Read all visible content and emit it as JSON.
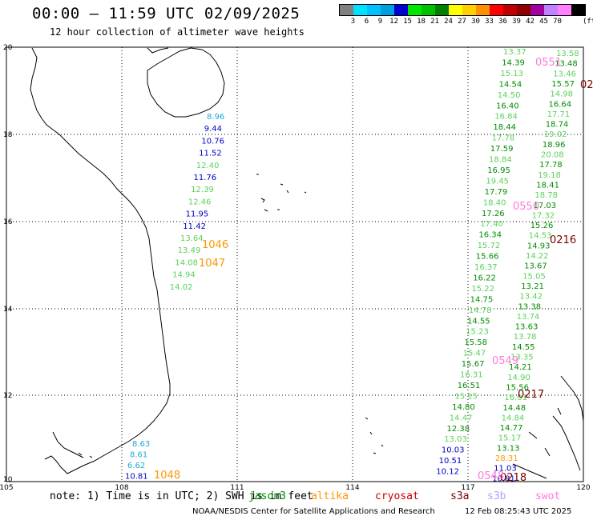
{
  "header": {
    "title": "00:00 – 11:59 UTC 02/09/2025",
    "subtitle": "12 hour collection of altimeter wave heights"
  },
  "scale": {
    "unit": "(ft)",
    "entries": [
      {
        "label": "",
        "color": "#808080"
      },
      {
        "label": "3",
        "color": "#00e0ff"
      },
      {
        "label": "6",
        "color": "#00c0ff"
      },
      {
        "label": "9",
        "color": "#00a0e0"
      },
      {
        "label": "12",
        "color": "#0000d0"
      },
      {
        "label": "15",
        "color": "#00e800"
      },
      {
        "label": "18",
        "color": "#00c000"
      },
      {
        "label": "21",
        "color": "#008000"
      },
      {
        "label": "24",
        "color": "#ffff00"
      },
      {
        "label": "27",
        "color": "#ffd000"
      },
      {
        "label": "30",
        "color": "#ff9000"
      },
      {
        "label": "33",
        "color": "#ff0000"
      },
      {
        "label": "36",
        "color": "#c00000"
      },
      {
        "label": "39",
        "color": "#900000"
      },
      {
        "label": "42",
        "color": "#a000a0"
      },
      {
        "label": "45",
        "color": "#c080ff"
      },
      {
        "label": "70",
        "color": "#ff80ff"
      },
      {
        "label": "",
        "color": "#000000"
      }
    ]
  },
  "axes": {
    "lat_labels": [
      "20",
      "18",
      "16",
      "14",
      "12",
      "10"
    ],
    "lon_labels": [
      "105",
      "108",
      "111",
      "114",
      "117",
      "120"
    ]
  },
  "colors": {
    "cyan": "#1eaad2",
    "blue": "#0000c8",
    "lightgreen": "#5ad25a",
    "green": "#008c00",
    "orange": "#ff9600",
    "pink": "#ff78dc",
    "maroon": "#780000"
  },
  "tracks": {
    "left": [
      {
        "t": "8.96",
        "c": "cyan"
      },
      {
        "t": "9.44",
        "c": "blue"
      },
      {
        "t": "10.76",
        "c": "blue"
      },
      {
        "t": "11.52",
        "c": "blue"
      },
      {
        "t": "12.40",
        "c": "lightgreen"
      },
      {
        "t": "11.76",
        "c": "blue"
      },
      {
        "t": "12.39",
        "c": "lightgreen"
      },
      {
        "t": "12.46",
        "c": "lightgreen"
      },
      {
        "t": "11.95",
        "c": "blue"
      },
      {
        "t": "11.42",
        "c": "blue"
      },
      {
        "t": "13.64",
        "c": "lightgreen"
      },
      {
        "t": "13.49",
        "c": "lightgreen"
      },
      {
        "t": "14.08",
        "c": "lightgreen"
      },
      {
        "t": "14.94",
        "c": "lightgreen"
      },
      {
        "t": "14.02",
        "c": "lightgreen"
      }
    ],
    "left_passes": [
      {
        "t": "1046",
        "c": "orange"
      },
      {
        "t": "1047",
        "c": "orange"
      }
    ],
    "bottom": [
      {
        "t": "8.63",
        "c": "cyan"
      },
      {
        "t": "8.61",
        "c": "cyan"
      },
      {
        "t": "6.62",
        "c": "cyan"
      },
      {
        "t": "10.81",
        "c": "blue"
      }
    ],
    "bottom_pass": {
      "t": "1048",
      "c": "orange"
    },
    "right_a": [
      "13.37",
      "14.39",
      "15.13",
      "14.54",
      "14.50",
      "16.40",
      "16.84",
      "18.44",
      "17.78",
      "17.59",
      "18.84",
      "16.95",
      "19.45",
      "17.79",
      "18.40",
      "17.26",
      "17.40",
      "16.34",
      "15.72",
      "15.66",
      "16.37",
      "16.22",
      "15.22",
      "14.75",
      "14.78",
      "14.55",
      "15.23",
      "15.58",
      "15.47",
      "15.67",
      "16.31",
      "16.51",
      "15.15",
      "14.80",
      "14.47",
      "12.38",
      "13.03",
      "10.03",
      "10.51",
      "10.12"
    ],
    "right_b": [
      "13.58",
      "13.48",
      "13.46",
      "15.57",
      "14.98",
      "16.64",
      "17.71",
      "18.74",
      "19.02",
      "18.96",
      "20.08",
      "17.78",
      "19.18",
      "18.41",
      "18.78",
      "17.03",
      "17.32",
      "15.26",
      "14.53",
      "14.93",
      "14.22",
      "13.67",
      "15.05",
      "13.21",
      "13.42",
      "13.38",
      "13.74",
      "13.63",
      "13.78",
      "14.55",
      "13.35",
      "14.21",
      "14.90",
      "15.56",
      "16.01",
      "14.48",
      "14.84",
      "14.77",
      "15.17",
      "13.13",
      "28.31",
      "11.03",
      "10.81"
    ],
    "right_passes": [
      {
        "t": "0551",
        "c": "pink"
      },
      {
        "t": "02",
        "c": "maroon"
      },
      {
        "t": "0550",
        "c": "pink"
      },
      {
        "t": "0216",
        "c": "maroon"
      },
      {
        "t": "0549",
        "c": "pink"
      },
      {
        "t": "0217",
        "c": "maroon"
      },
      {
        "t": "0218",
        "c": "maroon"
      },
      {
        "t": "0548",
        "c": "pink"
      }
    ]
  },
  "footer": {
    "note": "note: 1) Time is in UTC; 2) SWH is in feet",
    "satellites": [
      {
        "name": "jason3",
        "color": "#008c00"
      },
      {
        "name": "altika",
        "color": "#ff9600"
      },
      {
        "name": "cryosat",
        "color": "#c80000"
      },
      {
        "name": "s3a",
        "color": "#780000"
      },
      {
        "name": "s3b",
        "color": "#b4a0ff"
      },
      {
        "name": "swot",
        "color": "#ff78dc"
      }
    ],
    "credit": "NOAA/NESDIS Center for Satellite Applications and Research",
    "timestamp": "12 Feb 08:25:43 UTC 2025"
  }
}
